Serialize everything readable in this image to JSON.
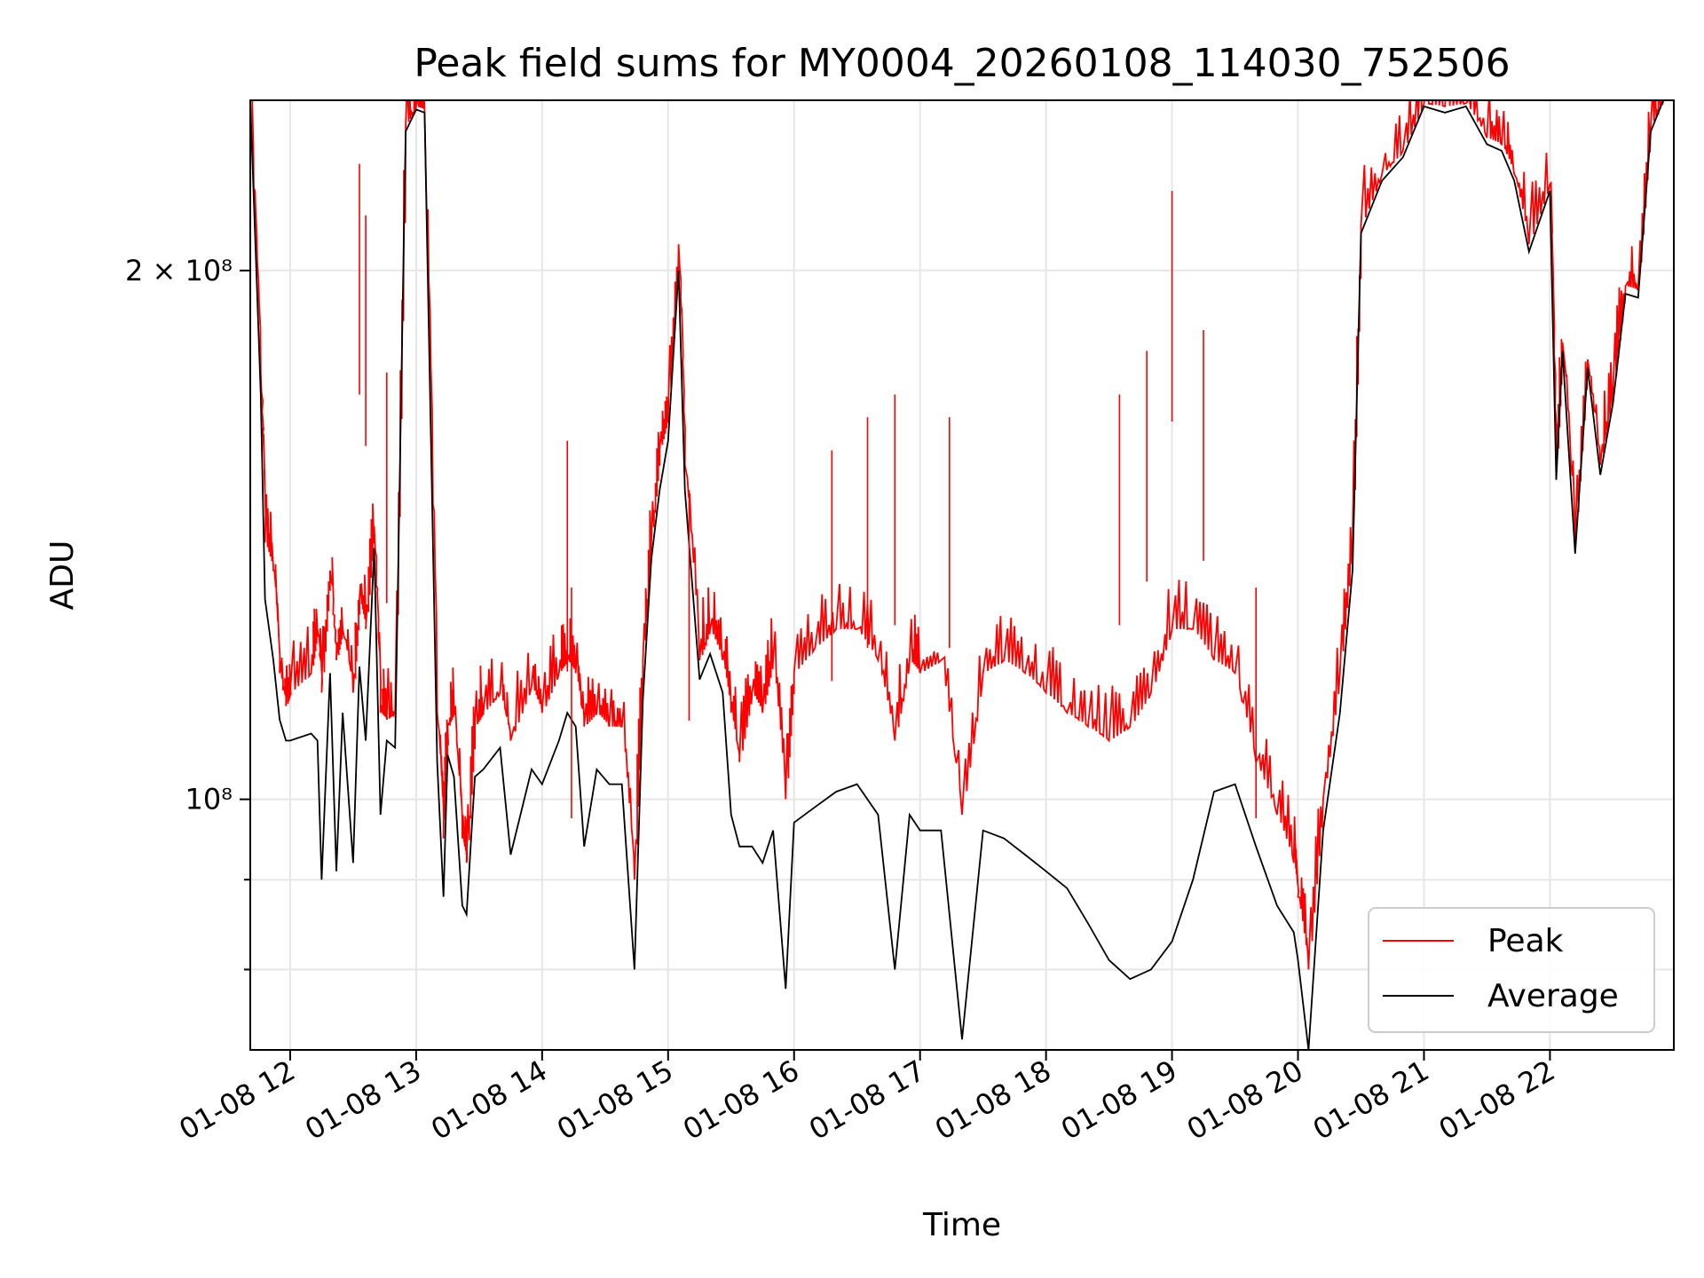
{
  "chart_data": {
    "type": "line",
    "title": "Peak field sums for MY0004_20260108_114030_752506",
    "xlabel": "Time",
    "ylabel": "ADU",
    "yscale": "log",
    "xlim": [
      "2026-01-08 11:41",
      "2026-01-08 22:59"
    ],
    "ylim": [
      72000000,
      250000000
    ],
    "grid": true,
    "legend_position": "lower-right",
    "x_ticks": [
      "01-08 12",
      "01-08 13",
      "01-08 14",
      "01-08 15",
      "01-08 16",
      "01-08 17",
      "01-08 18",
      "01-08 19",
      "01-08 20",
      "01-08 21",
      "01-08 22"
    ],
    "x_tick_times": [
      "2026-01-08 12:00",
      "2026-01-08 13:00",
      "2026-01-08 14:00",
      "2026-01-08 15:00",
      "2026-01-08 16:00",
      "2026-01-08 17:00",
      "2026-01-08 18:00",
      "2026-01-08 19:00",
      "2026-01-08 20:00",
      "2026-01-08 21:00",
      "2026-01-08 22:00"
    ],
    "y_ticks": [
      {
        "value": 200000000,
        "label": "2 × 10⁸",
        "major": true
      },
      {
        "value": 100000000,
        "label": "10⁸",
        "major": true
      },
      {
        "value": 90000000,
        "label": "",
        "major": false
      },
      {
        "value": 80000000,
        "label": "",
        "major": false
      }
    ],
    "x": [
      "2026-01-08 11:41",
      "2026-01-08 11:46",
      "2026-01-08 11:48",
      "2026-01-08 11:52",
      "2026-01-08 11:55",
      "2026-01-08 11:58",
      "2026-01-08 12:00",
      "2026-01-08 12:10",
      "2026-01-08 12:13",
      "2026-01-08 12:15",
      "2026-01-08 12:19",
      "2026-01-08 12:22",
      "2026-01-08 12:25",
      "2026-01-08 12:30",
      "2026-01-08 12:33",
      "2026-01-08 12:36",
      "2026-01-08 12:40",
      "2026-01-08 12:43",
      "2026-01-08 12:46",
      "2026-01-08 12:50",
      "2026-01-08 12:55",
      "2026-01-08 13:00",
      "2026-01-08 13:04",
      "2026-01-08 13:10",
      "2026-01-08 13:13",
      "2026-01-08 13:15",
      "2026-01-08 13:18",
      "2026-01-08 13:22",
      "2026-01-08 13:24",
      "2026-01-08 13:28",
      "2026-01-08 13:32",
      "2026-01-08 13:40",
      "2026-01-08 13:45",
      "2026-01-08 13:55",
      "2026-01-08 14:00",
      "2026-01-08 14:08",
      "2026-01-08 14:12",
      "2026-01-08 14:16",
      "2026-01-08 14:20",
      "2026-01-08 14:26",
      "2026-01-08 14:32",
      "2026-01-08 14:38",
      "2026-01-08 14:44",
      "2026-01-08 14:48",
      "2026-01-08 14:52",
      "2026-01-08 14:56",
      "2026-01-08 15:00",
      "2026-01-08 15:05",
      "2026-01-08 15:08",
      "2026-01-08 15:15",
      "2026-01-08 15:20",
      "2026-01-08 15:26",
      "2026-01-08 15:30",
      "2026-01-08 15:34",
      "2026-01-08 15:40",
      "2026-01-08 15:45",
      "2026-01-08 15:50",
      "2026-01-08 15:56",
      "2026-01-08 16:00",
      "2026-01-08 16:10",
      "2026-01-08 16:20",
      "2026-01-08 16:30",
      "2026-01-08 16:40",
      "2026-01-08 16:48",
      "2026-01-08 16:55",
      "2026-01-08 17:00",
      "2026-01-08 17:10",
      "2026-01-08 17:20",
      "2026-01-08 17:30",
      "2026-01-08 17:40",
      "2026-01-08 17:50",
      "2026-01-08 18:00",
      "2026-01-08 18:10",
      "2026-01-08 18:20",
      "2026-01-08 18:30",
      "2026-01-08 18:40",
      "2026-01-08 18:50",
      "2026-01-08 19:00",
      "2026-01-08 19:10",
      "2026-01-08 19:20",
      "2026-01-08 19:30",
      "2026-01-08 19:40",
      "2026-01-08 19:50",
      "2026-01-08 19:58",
      "2026-01-08 20:00",
      "2026-01-08 20:05",
      "2026-01-08 20:12",
      "2026-01-08 20:20",
      "2026-01-08 20:26",
      "2026-01-08 20:30",
      "2026-01-08 20:40",
      "2026-01-08 20:50",
      "2026-01-08 21:00",
      "2026-01-08 21:10",
      "2026-01-08 21:20",
      "2026-01-08 21:30",
      "2026-01-08 21:37",
      "2026-01-08 21:43",
      "2026-01-08 21:50",
      "2026-01-08 22:00",
      "2026-01-08 22:03",
      "2026-01-08 22:06",
      "2026-01-08 22:12",
      "2026-01-08 22:18",
      "2026-01-08 22:24",
      "2026-01-08 22:30",
      "2026-01-08 22:36",
      "2026-01-08 22:42",
      "2026-01-08 22:48",
      "2026-01-08 22:54",
      "2026-01-08 22:59"
    ],
    "series": [
      {
        "name": "Average",
        "color": "#000000",
        "values": [
          250000000,
          170000000,
          130000000,
          120000000,
          111000000,
          108000000,
          108000000,
          109000000,
          108000000,
          90000000,
          118000000,
          91000000,
          112000000,
          92000000,
          119000000,
          108000000,
          139000000,
          98000000,
          108000000,
          107000000,
          240000000,
          247000000,
          246000000,
          105000000,
          88000000,
          106000000,
          103000000,
          87000000,
          86000000,
          103000000,
          104000000,
          107000000,
          93000000,
          104000000,
          102000000,
          108000000,
          112000000,
          110000000,
          94000000,
          104000000,
          102000000,
          102000000,
          80000000,
          114000000,
          137000000,
          150000000,
          160000000,
          200000000,
          150000000,
          117000000,
          121000000,
          115000000,
          98000000,
          94000000,
          94000000,
          92000000,
          96000000,
          78000000,
          97000000,
          99000000,
          101000000,
          102000000,
          98000000,
          80000000,
          98000000,
          96000000,
          96000000,
          73000000,
          96000000,
          95000000,
          93000000,
          91000000,
          89000000,
          85000000,
          81000000,
          79000000,
          80000000,
          83000000,
          90000000,
          101000000,
          102000000,
          94000000,
          87000000,
          84000000,
          81000000,
          72000000,
          96000000,
          112000000,
          135000000,
          210000000,
          225000000,
          232000000,
          248000000,
          246000000,
          248000000,
          236000000,
          234000000,
          225000000,
          205000000,
          222000000,
          152000000,
          180000000,
          138000000,
          176000000,
          153000000,
          168000000,
          194000000,
          193000000,
          240000000,
          250000000,
          250000000
        ]
      },
      {
        "name": "Peak",
        "color": "#ff0000",
        "values": [
          250000000,
          175000000,
          140000000,
          135000000,
          118000000,
          113000000,
          115000000,
          118000000,
          125000000,
          115000000,
          135000000,
          120000000,
          125000000,
          115000000,
          130000000,
          125000000,
          143000000,
          112000000,
          111000000,
          112000000,
          242000000,
          248000000,
          247000000,
          112000000,
          95000000,
          110000000,
          112000000,
          95000000,
          92000000,
          110000000,
          112000000,
          115000000,
          108000000,
          116000000,
          112000000,
          118000000,
          120000000,
          118000000,
          110000000,
          112000000,
          110000000,
          110000000,
          90000000,
          120000000,
          140000000,
          158000000,
          165000000,
          207000000,
          155000000,
          120000000,
          125000000,
          120000000,
          112000000,
          105000000,
          115000000,
          112000000,
          120000000,
          100000000,
          118000000,
          122000000,
          125000000,
          125000000,
          120000000,
          108000000,
          120000000,
          118000000,
          120000000,
          98000000,
          118000000,
          120000000,
          118000000,
          115000000,
          112000000,
          110000000,
          108000000,
          110000000,
          115000000,
          125000000,
          125000000,
          120000000,
          118000000,
          105000000,
          98000000,
          92000000,
          88000000,
          80000000,
          100000000,
          118000000,
          140000000,
          212000000,
          227000000,
          234000000,
          249000000,
          248000000,
          249000000,
          238000000,
          236000000,
          227000000,
          207000000,
          224000000,
          154000000,
          182000000,
          140000000,
          178000000,
          155000000,
          170000000,
          196000000,
          195000000,
          242000000,
          250000000,
          250000000
        ]
      }
    ],
    "peak_spikes": [
      {
        "x": "2026-01-08 12:33",
        "value": 230000000
      },
      {
        "x": "2026-01-08 12:36",
        "value": 215000000
      },
      {
        "x": "2026-01-08 12:46",
        "value": 175000000
      },
      {
        "x": "2026-01-08 14:12",
        "value": 160000000
      },
      {
        "x": "2026-01-08 14:14",
        "value": 132000000
      },
      {
        "x": "2026-01-08 15:10",
        "value": 150000000
      },
      {
        "x": "2026-01-08 16:18",
        "value": 158000000
      },
      {
        "x": "2026-01-08 16:35",
        "value": 165000000
      },
      {
        "x": "2026-01-08 16:48",
        "value": 170000000
      },
      {
        "x": "2026-01-08 17:14",
        "value": 165000000
      },
      {
        "x": "2026-01-08 18:35",
        "value": 170000000
      },
      {
        "x": "2026-01-08 18:48",
        "value": 180000000
      },
      {
        "x": "2026-01-08 19:00",
        "value": 222000000
      },
      {
        "x": "2026-01-08 19:15",
        "value": 185000000
      },
      {
        "x": "2026-01-08 19:40",
        "value": 132000000
      }
    ]
  }
}
